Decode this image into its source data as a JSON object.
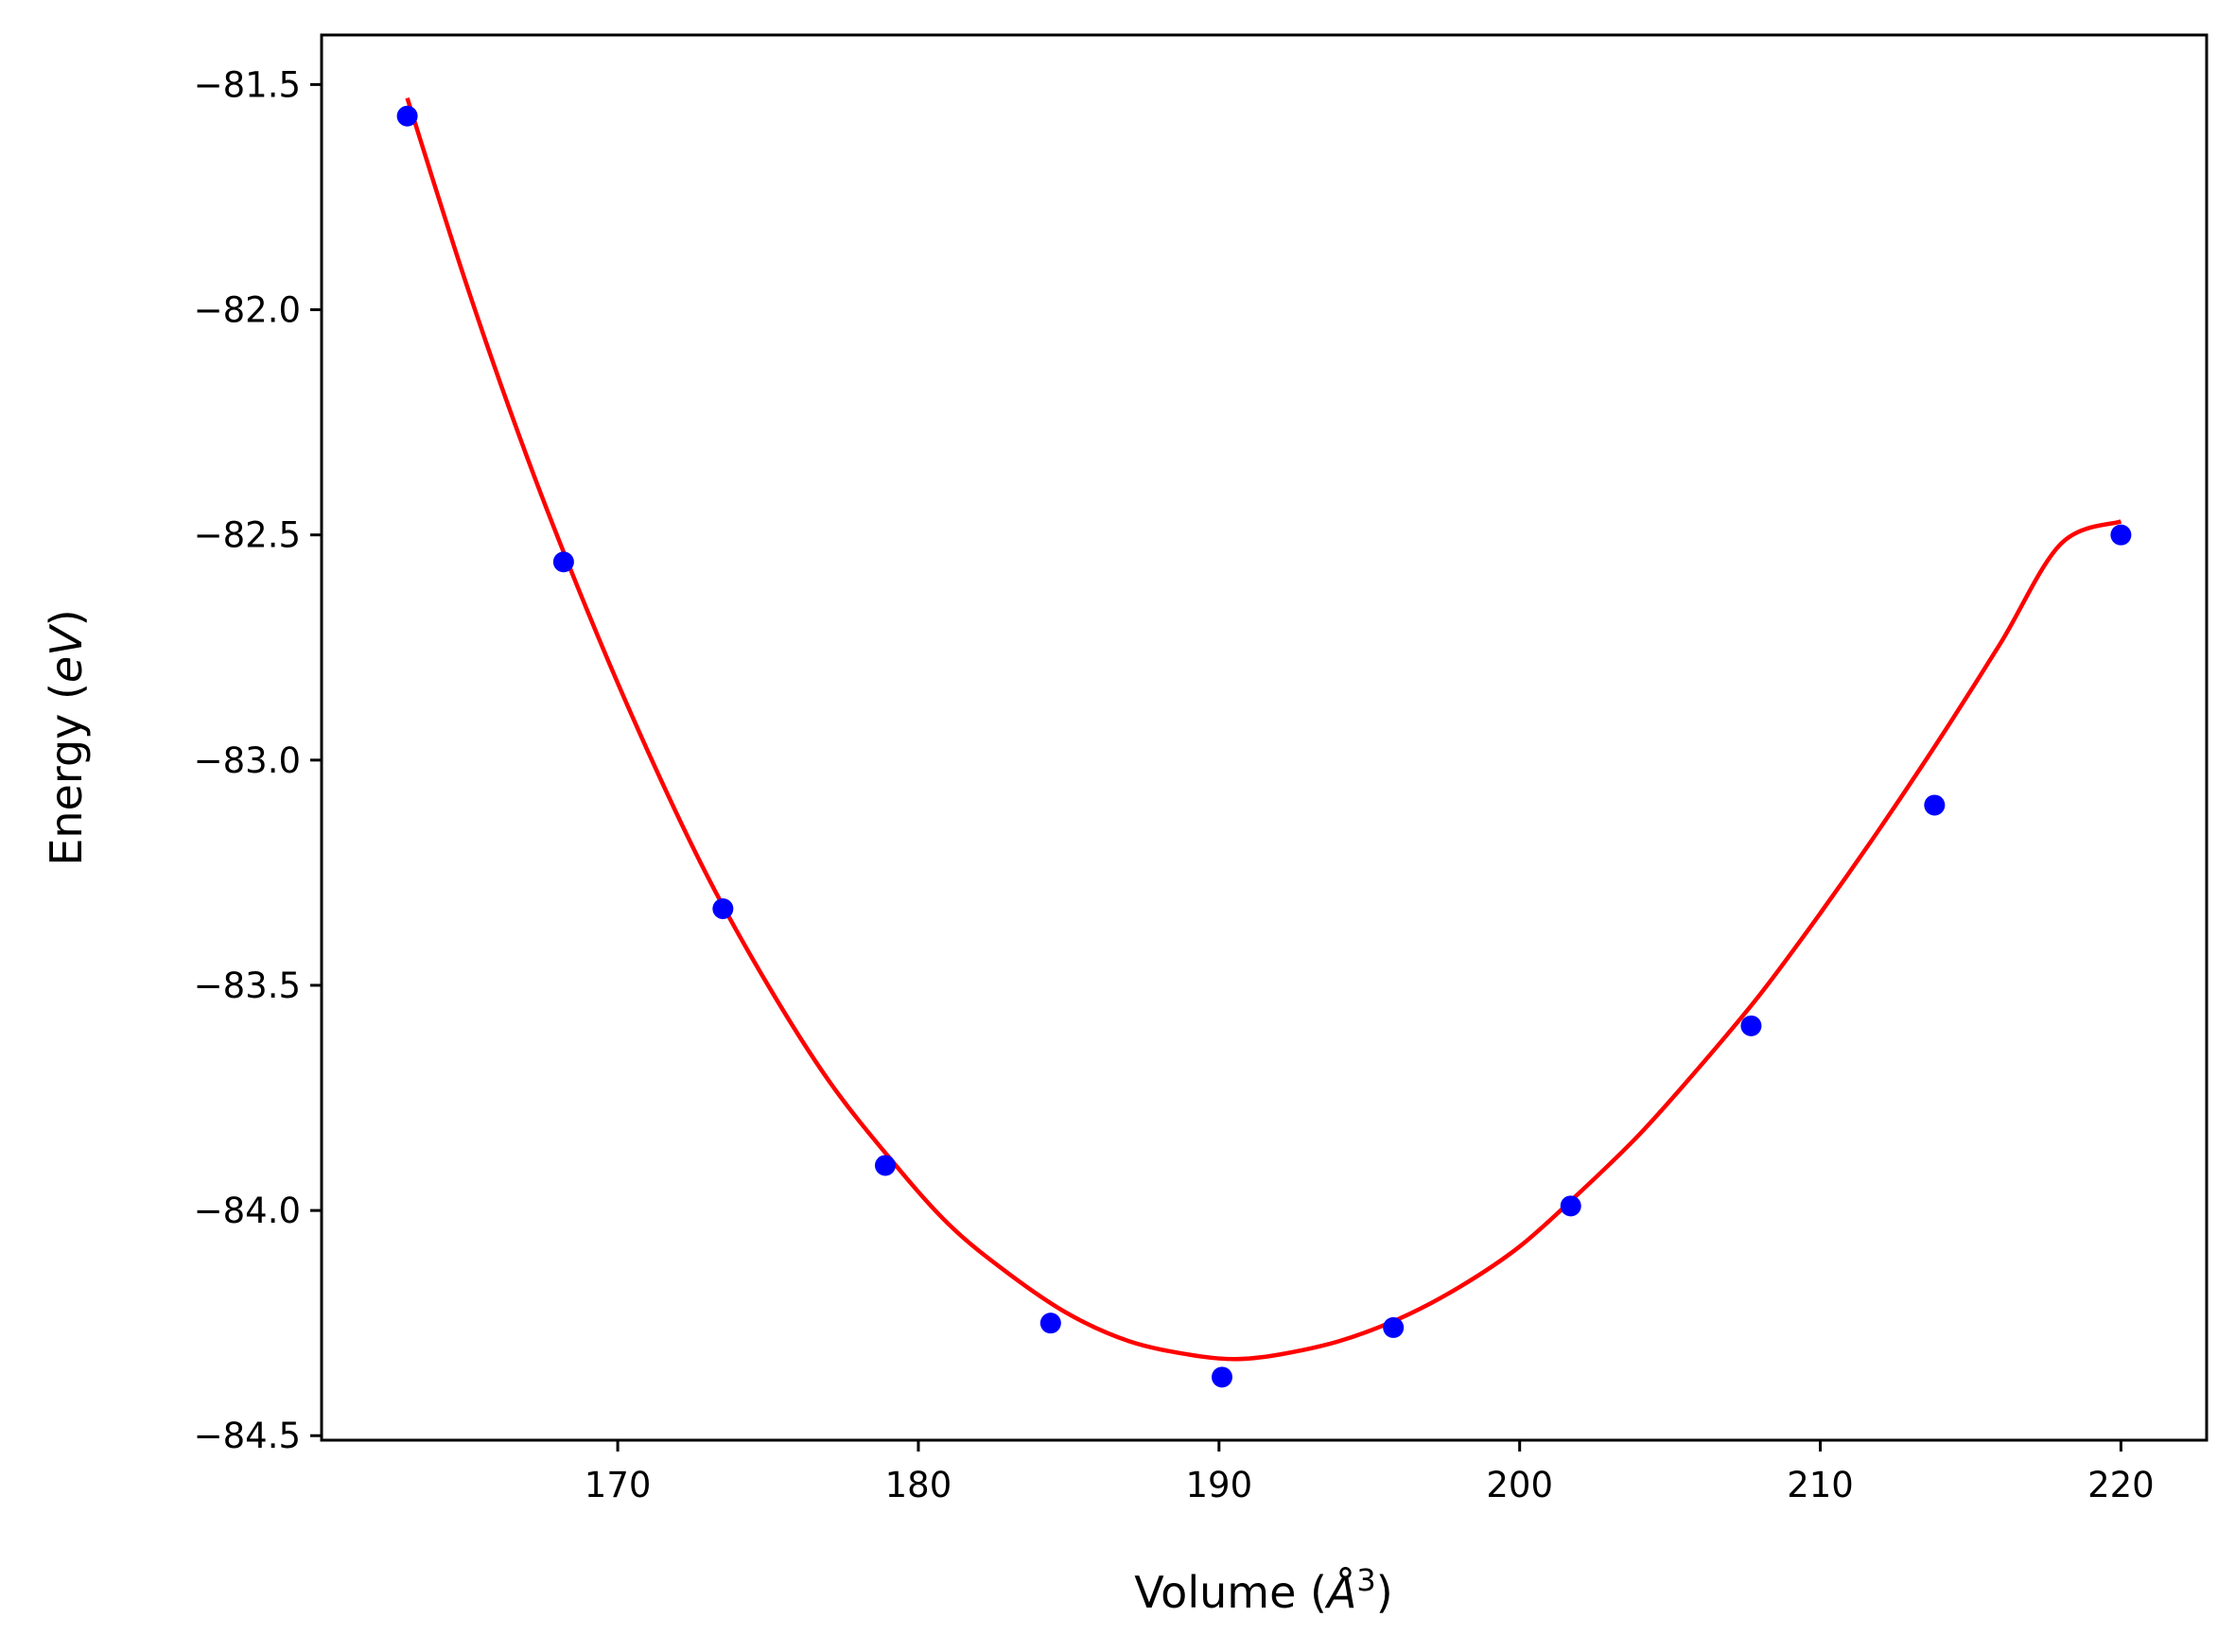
{
  "chart_data": {
    "type": "scatter",
    "title": "",
    "xlabel": {
      "prefix": "Volume (",
      "math": "Å",
      "superscript": "3",
      "suffix": ")"
    },
    "ylabel": {
      "prefix": "Energy (",
      "math": "eV",
      "suffix": ")"
    },
    "xlim": [
      160.15,
      222.85
    ],
    "ylim": [
      -84.51,
      -81.39
    ],
    "xticks": [
      170,
      180,
      190,
      200,
      210,
      220
    ],
    "xtick_labels": [
      "170",
      "180",
      "190",
      "200",
      "210",
      "220"
    ],
    "yticks": [
      -81.5,
      -82.0,
      -82.5,
      -83.0,
      -83.5,
      -84.0,
      -84.5
    ],
    "ytick_labels": [
      "−81.5",
      "−82.0",
      "−82.5",
      "−83.0",
      "−83.5",
      "−84.0",
      "−84.5"
    ],
    "grid": false,
    "series": [
      {
        "kind": "points",
        "color": "#0000ff",
        "x": [
          163.0,
          168.2,
          173.5,
          178.9,
          184.4,
          190.1,
          195.8,
          201.7,
          207.7,
          213.8,
          220.0
        ],
        "y": [
          -81.57,
          -82.56,
          -83.33,
          -83.9,
          -84.25,
          -84.37,
          -84.26,
          -83.99,
          -83.59,
          -83.1,
          -82.5
        ]
      },
      {
        "kind": "fit-curve",
        "color": "#ff0000",
        "x": [
          163.0,
          165.0,
          167.0,
          169.0,
          171.0,
          173.0,
          175.0,
          177.0,
          179.0,
          181.0,
          183.0,
          185.0,
          187.0,
          189.0,
          190.5,
          192.0,
          194.0,
          196.0,
          198.0,
          200.0,
          202.0,
          204.0,
          206.0,
          208.0,
          210.0,
          212.0,
          214.0,
          216.0,
          218.0,
          220.0
        ],
        "y": [
          -81.53,
          -81.95,
          -82.33,
          -82.67,
          -82.98,
          -83.26,
          -83.5,
          -83.71,
          -83.88,
          -84.03,
          -84.14,
          -84.23,
          -84.29,
          -84.32,
          -84.33,
          -84.32,
          -84.29,
          -84.24,
          -84.17,
          -84.08,
          -83.96,
          -83.83,
          -83.68,
          -83.52,
          -83.34,
          -83.15,
          -82.95,
          -82.74,
          -82.52,
          -82.47
        ]
      }
    ]
  }
}
